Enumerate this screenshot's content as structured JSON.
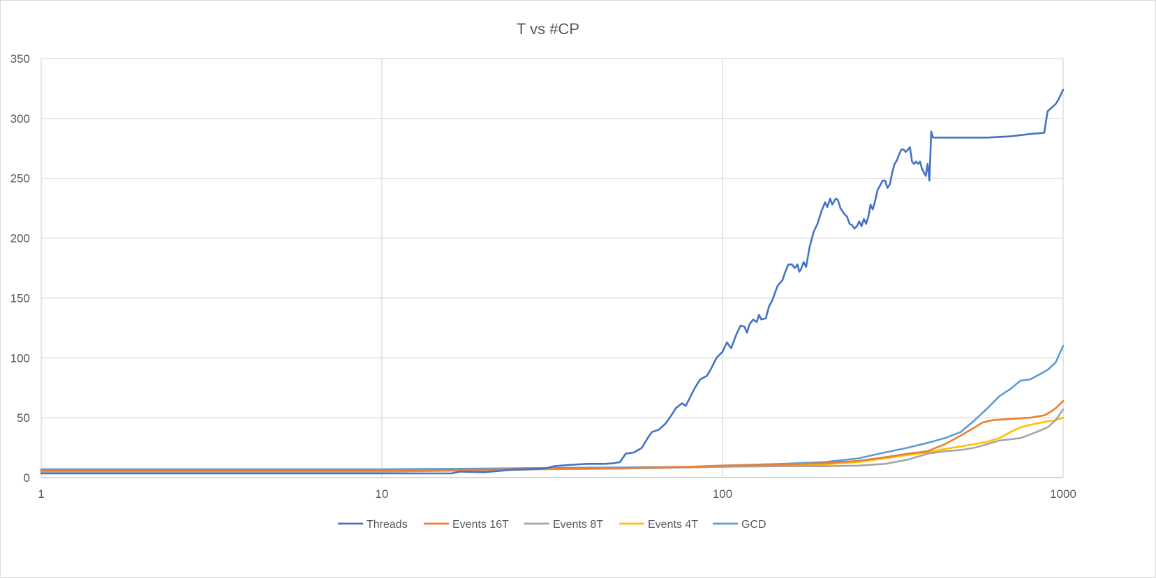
{
  "chart_data": {
    "type": "line",
    "title": "T vs #CP",
    "xlabel": "",
    "ylabel": "",
    "x_scale": "log",
    "xlim": [
      1,
      1000
    ],
    "ylim": [
      0,
      350
    ],
    "x_ticks": [
      1,
      10,
      100,
      1000
    ],
    "x_tick_labels": [
      "1",
      "10",
      "100",
      "1000"
    ],
    "y_ticks": [
      0,
      50,
      100,
      150,
      200,
      250,
      300,
      350
    ],
    "y_tick_labels": [
      "0",
      "50",
      "100",
      "150",
      "200",
      "250",
      "300",
      "350"
    ],
    "grid": true,
    "legend_position": "bottom",
    "series": [
      {
        "name": "Threads",
        "color": "#4472C4",
        "points": [
          [
            1,
            3.5
          ],
          [
            5,
            3.5
          ],
          [
            10,
            3.5
          ],
          [
            16,
            3.5
          ],
          [
            17,
            5
          ],
          [
            20,
            4.5
          ],
          [
            24,
            6.5
          ],
          [
            30,
            7.5
          ],
          [
            32,
            9.5
          ],
          [
            35,
            10.5
          ],
          [
            40,
            11.5
          ],
          [
            45,
            11.5
          ],
          [
            48,
            12
          ],
          [
            50,
            13
          ],
          [
            52,
            20
          ],
          [
            55,
            21
          ],
          [
            58,
            25
          ],
          [
            60,
            32
          ],
          [
            62,
            38
          ],
          [
            65,
            40
          ],
          [
            68,
            45
          ],
          [
            70,
            50
          ],
          [
            73,
            58
          ],
          [
            76,
            62
          ],
          [
            78,
            60
          ],
          [
            80,
            66
          ],
          [
            83,
            75
          ],
          [
            86,
            82
          ],
          [
            90,
            85
          ],
          [
            93,
            92
          ],
          [
            96,
            100
          ],
          [
            100,
            105
          ],
          [
            103,
            113
          ],
          [
            106,
            108
          ],
          [
            110,
            120
          ],
          [
            113,
            127
          ],
          [
            116,
            126
          ],
          [
            118,
            121
          ],
          [
            120,
            128
          ],
          [
            123,
            132
          ],
          [
            126,
            130
          ],
          [
            128,
            136
          ],
          [
            130,
            132
          ],
          [
            134,
            133
          ],
          [
            137,
            143
          ],
          [
            140,
            148
          ],
          [
            145,
            160
          ],
          [
            150,
            165
          ],
          [
            153,
            172
          ],
          [
            156,
            178
          ],
          [
            160,
            178
          ],
          [
            163,
            175
          ],
          [
            166,
            178
          ],
          [
            168,
            172
          ],
          [
            170,
            174
          ],
          [
            173,
            180
          ],
          [
            176,
            176
          ],
          [
            180,
            192
          ],
          [
            185,
            205
          ],
          [
            190,
            212
          ],
          [
            195,
            222
          ],
          [
            200,
            230
          ],
          [
            203,
            226
          ],
          [
            207,
            233
          ],
          [
            210,
            228
          ],
          [
            215,
            233
          ],
          [
            218,
            232
          ],
          [
            222,
            225
          ],
          [
            228,
            220
          ],
          [
            232,
            218
          ],
          [
            236,
            212
          ],
          [
            240,
            211
          ],
          [
            244,
            208
          ],
          [
            248,
            210
          ],
          [
            252,
            214
          ],
          [
            256,
            210
          ],
          [
            260,
            216
          ],
          [
            264,
            212
          ],
          [
            268,
            218
          ],
          [
            272,
            228
          ],
          [
            276,
            224
          ],
          [
            280,
            230
          ],
          [
            285,
            240
          ],
          [
            290,
            244
          ],
          [
            295,
            248
          ],
          [
            300,
            248
          ],
          [
            305,
            242
          ],
          [
            310,
            245
          ],
          [
            315,
            255
          ],
          [
            320,
            262
          ],
          [
            325,
            265
          ],
          [
            330,
            270
          ],
          [
            335,
            274
          ],
          [
            340,
            274
          ],
          [
            345,
            272
          ],
          [
            350,
            274
          ],
          [
            355,
            276
          ],
          [
            360,
            264
          ],
          [
            365,
            262
          ],
          [
            370,
            264
          ],
          [
            375,
            262
          ],
          [
            380,
            264
          ],
          [
            385,
            258
          ],
          [
            390,
            255
          ],
          [
            395,
            252
          ],
          [
            400,
            262
          ],
          [
            405,
            248
          ],
          [
            410,
            289
          ],
          [
            415,
            284
          ],
          [
            450,
            284
          ],
          [
            500,
            284
          ],
          [
            600,
            284
          ],
          [
            700,
            285
          ],
          [
            800,
            287
          ],
          [
            880,
            288
          ],
          [
            900,
            306
          ],
          [
            950,
            312
          ],
          [
            970,
            316
          ],
          [
            1000,
            324
          ]
        ]
      },
      {
        "name": "Events 16T",
        "color": "#ED7D31",
        "points": [
          [
            1,
            6
          ],
          [
            10,
            6
          ],
          [
            20,
            6.5
          ],
          [
            30,
            7.5
          ],
          [
            50,
            8
          ],
          [
            80,
            9
          ],
          [
            100,
            10
          ],
          [
            150,
            11
          ],
          [
            200,
            12
          ],
          [
            250,
            14
          ],
          [
            300,
            17
          ],
          [
            350,
            20
          ],
          [
            400,
            22
          ],
          [
            450,
            28
          ],
          [
            500,
            35
          ],
          [
            550,
            42
          ],
          [
            580,
            46
          ],
          [
            620,
            48
          ],
          [
            700,
            49
          ],
          [
            800,
            50
          ],
          [
            880,
            52
          ],
          [
            920,
            55
          ],
          [
            960,
            59
          ],
          [
            1000,
            64
          ]
        ]
      },
      {
        "name": "Events 8T",
        "color": "#A5A5A5",
        "points": [
          [
            1,
            5
          ],
          [
            10,
            5
          ],
          [
            20,
            6
          ],
          [
            30,
            7
          ],
          [
            50,
            7.5
          ],
          [
            80,
            8.5
          ],
          [
            100,
            9
          ],
          [
            150,
            9.5
          ],
          [
            200,
            9.5
          ],
          [
            250,
            10
          ],
          [
            300,
            11.5
          ],
          [
            350,
            15
          ],
          [
            400,
            20
          ],
          [
            450,
            22
          ],
          [
            500,
            23
          ],
          [
            550,
            25
          ],
          [
            600,
            28
          ],
          [
            650,
            31
          ],
          [
            700,
            32
          ],
          [
            750,
            33
          ],
          [
            800,
            36
          ],
          [
            850,
            39
          ],
          [
            900,
            42
          ],
          [
            950,
            48
          ],
          [
            1000,
            57
          ]
        ]
      },
      {
        "name": "Events 4T",
        "color": "#FFC000",
        "points": [
          [
            1,
            5.5
          ],
          [
            10,
            5.5
          ],
          [
            20,
            6
          ],
          [
            30,
            7
          ],
          [
            50,
            7.5
          ],
          [
            80,
            8.5
          ],
          [
            100,
            9
          ],
          [
            150,
            10
          ],
          [
            200,
            11
          ],
          [
            250,
            13
          ],
          [
            300,
            16
          ],
          [
            350,
            19
          ],
          [
            400,
            21
          ],
          [
            450,
            24
          ],
          [
            500,
            26
          ],
          [
            550,
            28
          ],
          [
            600,
            30
          ],
          [
            650,
            33
          ],
          [
            700,
            38
          ],
          [
            750,
            42
          ],
          [
            800,
            44
          ],
          [
            900,
            47
          ],
          [
            950,
            48
          ],
          [
            1000,
            50
          ]
        ]
      },
      {
        "name": "GCD",
        "color": "#5B9BD5",
        "points": [
          [
            1,
            7
          ],
          [
            10,
            7
          ],
          [
            20,
            7.5
          ],
          [
            30,
            8
          ],
          [
            50,
            8.5
          ],
          [
            80,
            9
          ],
          [
            100,
            10
          ],
          [
            150,
            11.5
          ],
          [
            200,
            13
          ],
          [
            250,
            16
          ],
          [
            300,
            21
          ],
          [
            350,
            25
          ],
          [
            400,
            29
          ],
          [
            450,
            33
          ],
          [
            500,
            38
          ],
          [
            550,
            48
          ],
          [
            600,
            58
          ],
          [
            650,
            68
          ],
          [
            700,
            74
          ],
          [
            750,
            81
          ],
          [
            800,
            82
          ],
          [
            850,
            86
          ],
          [
            900,
            90
          ],
          [
            950,
            96
          ],
          [
            1000,
            110
          ]
        ]
      }
    ]
  }
}
